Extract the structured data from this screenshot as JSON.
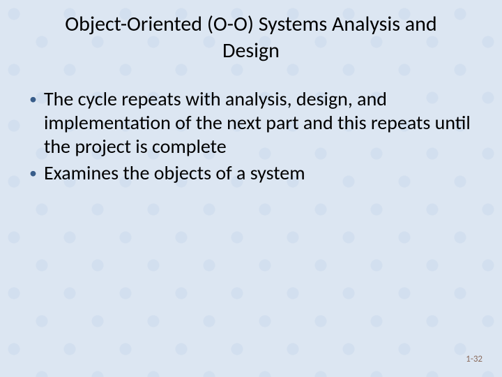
{
  "background_color": "#dce6f2",
  "pattern_color": "#c8d7eb",
  "title": {
    "text": "Object-Oriented (O-O) Systems Analysis and Design",
    "fontsize": 30,
    "color": "#000000",
    "align": "center"
  },
  "bullets": [
    "The cycle repeats with analysis, design, and implementation of the next part and this repeats until the project is complete",
    "Examines the objects of a system"
  ],
  "bullet_style": {
    "marker": "•",
    "marker_color": "#385d8a",
    "fontsize": 28,
    "text_color": "#000000"
  },
  "page_number": {
    "text": "1-32",
    "fontsize": 13,
    "color": "#8a6b5c"
  }
}
